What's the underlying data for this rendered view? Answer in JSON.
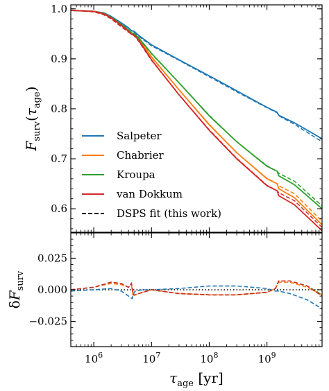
{
  "chart_data": [
    {
      "type": "line",
      "panel": "top",
      "x_scale": "log",
      "xlim": [
        400000,
        9000000000
      ],
      "ylim": [
        0.553,
        1.008
      ],
      "ylabel": "F_surv(τ_age)",
      "yticks": [
        {
          "value": 0.6,
          "label": "0.6"
        },
        {
          "value": 0.7,
          "label": "0.7"
        },
        {
          "value": 0.8,
          "label": "0.8"
        },
        {
          "value": 0.9,
          "label": "0.9"
        },
        {
          "value": 1.0,
          "label": "1.0"
        }
      ],
      "legend": {
        "placement": "lower-left",
        "entries": [
          {
            "label": "Salpeter",
            "color": "#1f77b4",
            "style": "solid"
          },
          {
            "label": "Chabrier",
            "color": "#ff7f0e",
            "style": "solid"
          },
          {
            "label": "Kroupa",
            "color": "#2ca02c",
            "style": "solid"
          },
          {
            "label": "van Dokkum",
            "color": "#d62728",
            "style": "solid"
          },
          {
            "label": "DSPS fit (this work)",
            "color": "#000000",
            "style": "dashed"
          }
        ]
      },
      "series": [
        {
          "name": "Salpeter",
          "color": "#1f77b4",
          "x": [
            400000,
            1000000,
            1500000,
            2000000,
            3000000,
            4000000,
            4500000,
            5000000,
            6000000,
            10000000,
            30000000,
            100000000,
            300000000,
            1000000000,
            1500000000,
            1600000000,
            3000000000,
            9000000000
          ],
          "y": [
            0.997,
            0.995,
            0.992,
            0.985,
            0.972,
            0.962,
            0.956,
            0.955,
            0.947,
            0.928,
            0.898,
            0.866,
            0.836,
            0.803,
            0.793,
            0.787,
            0.772,
            0.74
          ],
          "fit_y": [
            0.997,
            0.995,
            0.991,
            0.984,
            0.971,
            0.961,
            0.957,
            0.953,
            0.945,
            0.926,
            0.897,
            0.864,
            0.834,
            0.802,
            0.792,
            0.786,
            0.769,
            0.734
          ]
        },
        {
          "name": "Chabrier",
          "color": "#ff7f0e",
          "x": [
            400000,
            1000000,
            1500000,
            2000000,
            3000000,
            4000000,
            4500000,
            5000000,
            6000000,
            10000000,
            30000000,
            100000000,
            300000000,
            1000000000,
            1500000000,
            1600000000,
            3000000000,
            9000000000
          ],
          "y": [
            0.997,
            0.995,
            0.991,
            0.983,
            0.969,
            0.957,
            0.951,
            0.95,
            0.94,
            0.904,
            0.838,
            0.768,
            0.712,
            0.66,
            0.65,
            0.64,
            0.622,
            0.568
          ],
          "fit_y": [
            0.997,
            0.994,
            0.989,
            0.981,
            0.966,
            0.955,
            0.952,
            0.948,
            0.938,
            0.903,
            0.838,
            0.769,
            0.712,
            0.661,
            0.65,
            0.646,
            0.63,
            0.575
          ]
        },
        {
          "name": "Kroupa",
          "color": "#2ca02c",
          "x": [
            400000,
            1000000,
            1500000,
            2000000,
            3000000,
            4000000,
            4500000,
            5000000,
            6000000,
            10000000,
            30000000,
            100000000,
            300000000,
            1000000000,
            1500000000,
            1600000000,
            3000000000,
            9000000000
          ],
          "y": [
            0.997,
            0.995,
            0.991,
            0.983,
            0.969,
            0.958,
            0.952,
            0.951,
            0.942,
            0.911,
            0.852,
            0.786,
            0.734,
            0.685,
            0.675,
            0.666,
            0.648,
            0.6
          ],
          "fit_y": [
            0.997,
            0.994,
            0.989,
            0.981,
            0.966,
            0.955,
            0.953,
            0.949,
            0.94,
            0.91,
            0.852,
            0.787,
            0.734,
            0.686,
            0.675,
            0.671,
            0.655,
            0.606
          ]
        },
        {
          "name": "van Dokkum",
          "color": "#d62728",
          "x": [
            400000,
            1000000,
            1500000,
            2000000,
            3000000,
            4000000,
            4500000,
            5000000,
            6000000,
            10000000,
            30000000,
            100000000,
            300000000,
            1000000000,
            1500000000,
            1600000000,
            3000000000,
            9000000000
          ],
          "y": [
            0.997,
            0.995,
            0.99,
            0.982,
            0.967,
            0.955,
            0.949,
            0.948,
            0.937,
            0.898,
            0.828,
            0.757,
            0.7,
            0.646,
            0.636,
            0.626,
            0.608,
            0.556
          ],
          "fit_y": [
            0.997,
            0.994,
            0.988,
            0.98,
            0.964,
            0.953,
            0.95,
            0.946,
            0.935,
            0.897,
            0.828,
            0.758,
            0.701,
            0.647,
            0.636,
            0.632,
            0.616,
            0.563
          ]
        }
      ]
    },
    {
      "type": "line",
      "panel": "bottom",
      "x_scale": "log",
      "xlim": [
        400000,
        9000000000
      ],
      "ylim": [
        -0.045,
        0.045
      ],
      "xlabel": "τ_age [yr]",
      "ylabel": "δF_surv",
      "xticks": [
        {
          "value": 1000000,
          "base": "10",
          "exp": "6"
        },
        {
          "value": 10000000,
          "base": "10",
          "exp": "7"
        },
        {
          "value": 100000000,
          "base": "10",
          "exp": "8"
        },
        {
          "value": 1000000000,
          "base": "10",
          "exp": "9"
        }
      ],
      "yticks": [
        {
          "value": -0.025,
          "label": "−0.025"
        },
        {
          "value": 0.0,
          "label": "0.000"
        },
        {
          "value": 0.025,
          "label": "0.025"
        }
      ],
      "zero_line": {
        "style": "dotted",
        "color": "#000000"
      },
      "series": [
        {
          "name": "Salpeter",
          "color": "#1f77b4",
          "x": [
            400000,
            1000000,
            2000000,
            3000000,
            4000000,
            4600000,
            5000000,
            5300000,
            7000000,
            10000000,
            30000000,
            100000000,
            300000000,
            1000000000,
            1400000000,
            1600000000,
            2500000000,
            5000000000,
            9000000000
          ],
          "y": [
            -0.001,
            0.0,
            0.001,
            -0.001,
            -0.005,
            -0.007,
            -0.002,
            -0.001,
            0.0,
            0.0,
            0.001,
            0.003,
            0.003,
            0.001,
            -0.001,
            -0.001,
            -0.003,
            -0.008,
            -0.015
          ]
        },
        {
          "name": "Chabrier",
          "color": "#ff7f0e",
          "x": [
            400000,
            1000000,
            2000000,
            3000000,
            4000000,
            4500000,
            4800000,
            5200000,
            7000000,
            10000000,
            30000000,
            100000000,
            300000000,
            1000000000,
            1400000000,
            1600000000,
            2500000000,
            5000000000,
            9000000000
          ],
          "y": [
            0.0,
            0.002,
            0.005,
            0.004,
            0.002,
            0.004,
            -0.005,
            -0.004,
            -0.002,
            0.0,
            -0.003,
            -0.004,
            -0.004,
            -0.002,
            0.001,
            0.006,
            0.006,
            0.002,
            -0.004
          ]
        },
        {
          "name": "Kroupa",
          "color": "#2ca02c",
          "x": [
            400000,
            1000000,
            2000000,
            3000000,
            4000000,
            4500000,
            4800000,
            5200000,
            7000000,
            10000000,
            30000000,
            100000000,
            300000000,
            1000000000,
            1400000000,
            1600000000,
            2500000000,
            5000000000,
            9000000000
          ],
          "y": [
            0.0,
            0.002,
            0.006,
            0.005,
            0.002,
            0.005,
            -0.004,
            -0.004,
            -0.002,
            0.0,
            -0.003,
            -0.004,
            -0.004,
            -0.002,
            0.001,
            0.007,
            0.007,
            0.003,
            -0.004
          ]
        },
        {
          "name": "van Dokkum",
          "color": "#d62728",
          "x": [
            400000,
            1000000,
            2000000,
            3000000,
            4000000,
            4500000,
            4800000,
            5200000,
            7000000,
            10000000,
            30000000,
            100000000,
            300000000,
            1000000000,
            1400000000,
            1600000000,
            2500000000,
            5000000000,
            9000000000
          ],
          "y": [
            0.0,
            0.002,
            0.006,
            0.005,
            0.002,
            0.005,
            -0.004,
            -0.004,
            -0.002,
            0.0,
            -0.003,
            -0.004,
            -0.004,
            -0.002,
            0.001,
            0.007,
            0.007,
            0.003,
            -0.005
          ]
        }
      ]
    }
  ]
}
